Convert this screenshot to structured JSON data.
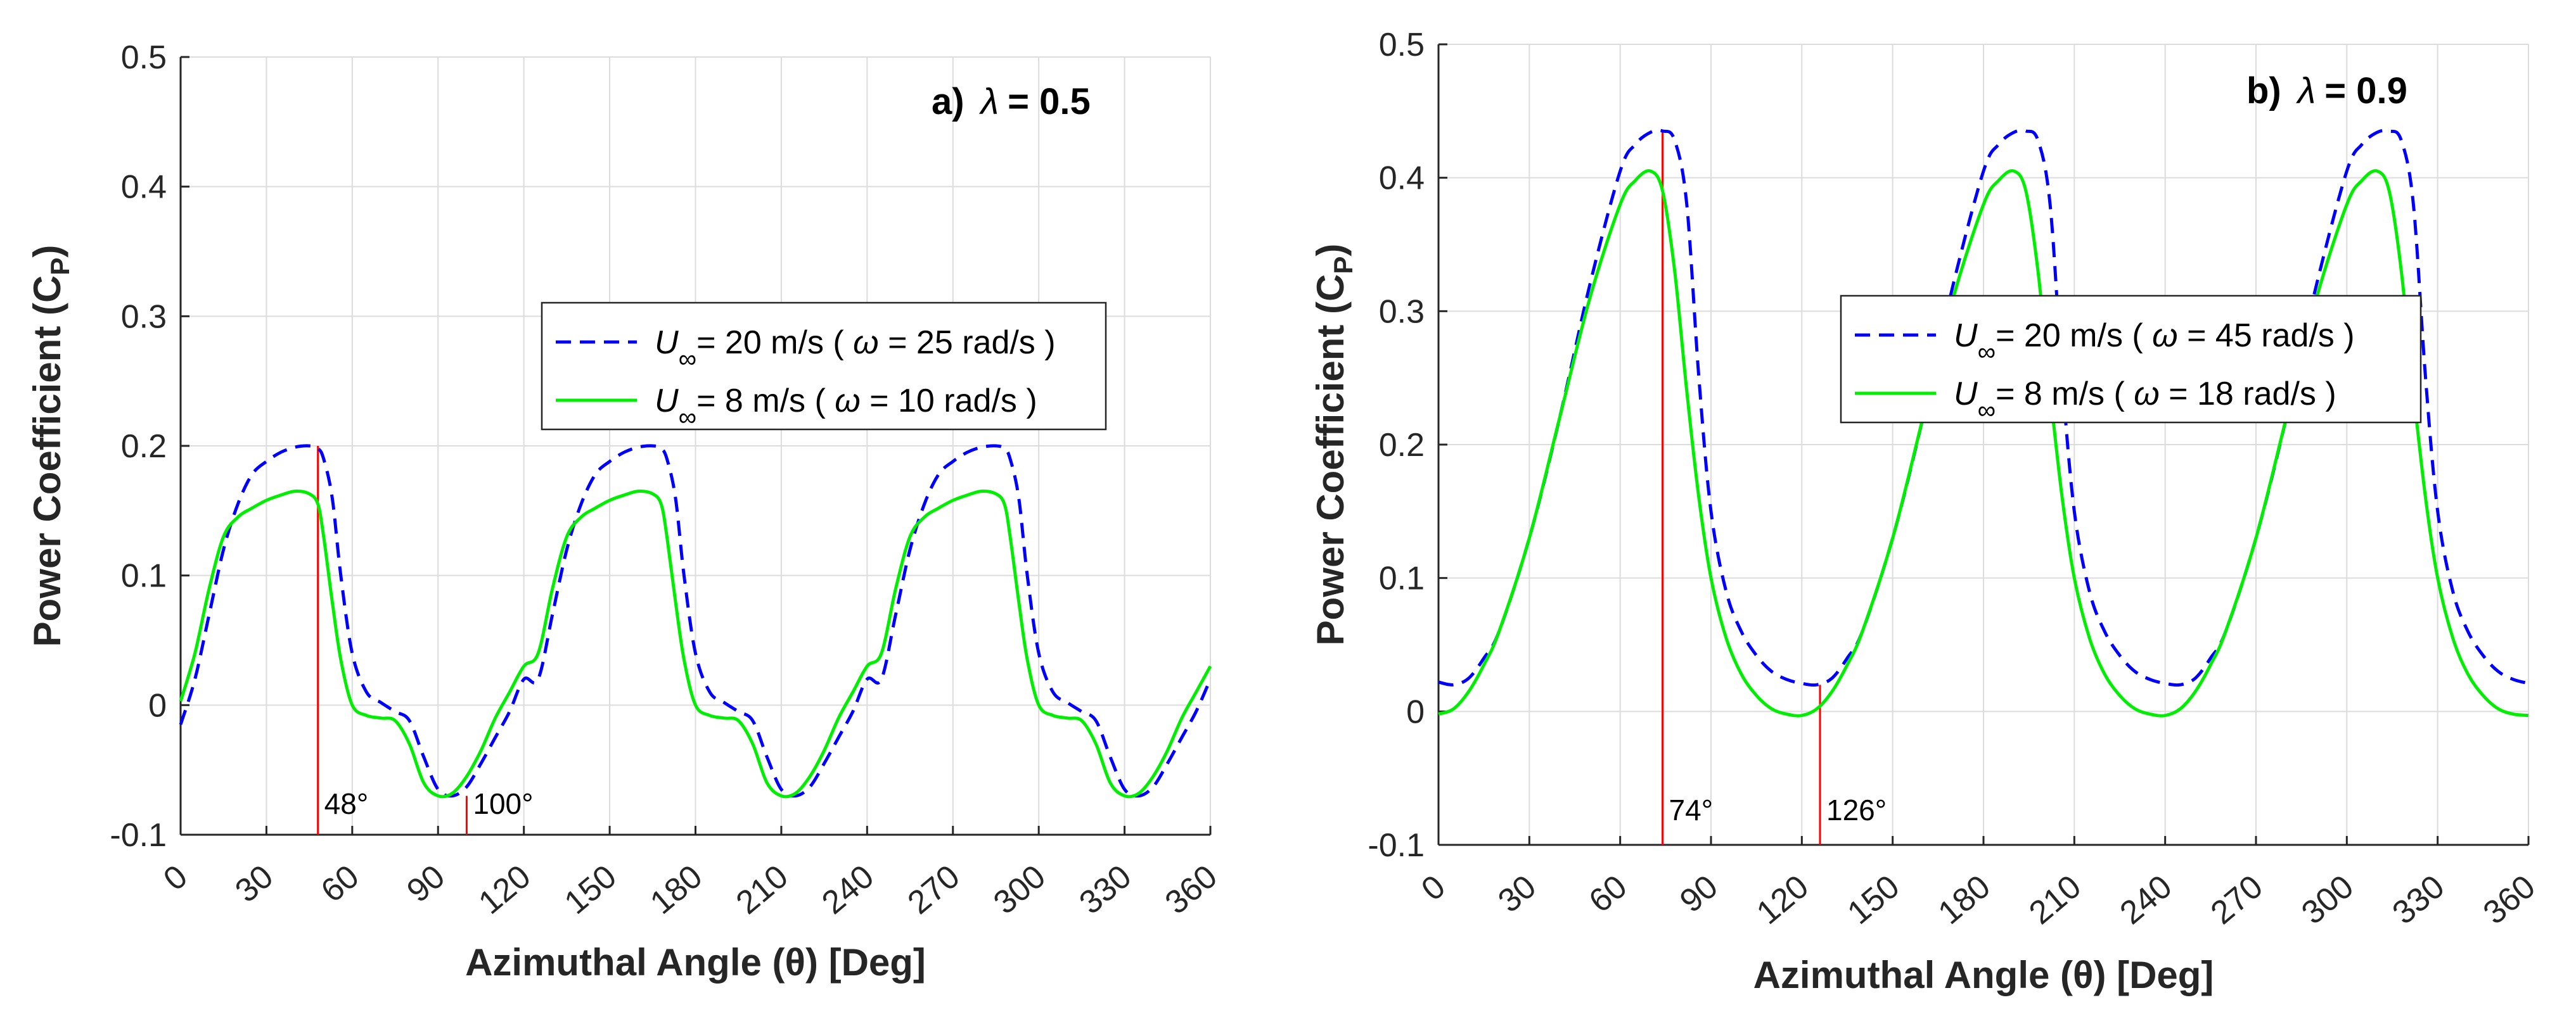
{
  "chart_data": [
    {
      "type": "line",
      "panel_tag": "a)",
      "title_symbol": "λ",
      "title_value": "= 0.5",
      "xlabel": "Azimuthal Angle (θ)  [Deg]",
      "ylabel": "Power Coefficient (C",
      "ylabel_sub": "P",
      "ylabel_close": ")",
      "xlim": [
        0,
        360
      ],
      "ylim": [
        -0.1,
        0.5
      ],
      "xticks": [
        0,
        30,
        60,
        90,
        120,
        150,
        180,
        210,
        240,
        270,
        300,
        330,
        360
      ],
      "yticks": [
        -0.1,
        0,
        0.1,
        0.2,
        0.3,
        0.4,
        0.5
      ],
      "xtick_labels": [
        "0",
        "30",
        "60",
        "90",
        "120",
        "150",
        "180",
        "210",
        "240",
        "270",
        "300",
        "330",
        "360"
      ],
      "ytick_labels": [
        "-0.1",
        "0",
        "0.1",
        "0.2",
        "0.3",
        "0.4",
        "0.5"
      ],
      "grid": true,
      "legend_position": "upper-right",
      "series": [
        {
          "name": "U∞ = 20 m/s  ( ω = 25 rad/s )",
          "legend_u": "U",
          "legend_sub": "∞",
          "legend_text": "= 20 m/s  ( ",
          "legend_omega": "ω",
          "legend_rest": " = 25 rad/s )",
          "color": "#0000ff",
          "dash": "dashed",
          "x": [
            0,
            5,
            10,
            15,
            20,
            25,
            30,
            35,
            40,
            45,
            48,
            50,
            53,
            56,
            60,
            65,
            70,
            75,
            80,
            85,
            90,
            95,
            100,
            105,
            110,
            115,
            120
          ],
          "y": [
            -0.015,
            0.02,
            0.07,
            0.12,
            0.155,
            0.178,
            0.188,
            0.195,
            0.199,
            0.2,
            0.198,
            0.19,
            0.16,
            0.1,
            0.04,
            0.01,
            0.002,
            -0.005,
            -0.012,
            -0.04,
            -0.065,
            -0.07,
            -0.063,
            -0.045,
            -0.025,
            -0.005,
            0.02
          ]
        },
        {
          "name": "U∞ = 8 m/s   ( ω = 10 rad/s )",
          "legend_u": "U",
          "legend_sub": "∞",
          "legend_text": "=  8 m/s   ( ",
          "legend_omega": "ω",
          "legend_rest": " = 10 rad/s )",
          "color": "#00ee00",
          "dash": "solid",
          "x": [
            0,
            5,
            10,
            15,
            20,
            25,
            30,
            35,
            40,
            45,
            48,
            50,
            53,
            56,
            60,
            65,
            70,
            75,
            80,
            85,
            90,
            95,
            100,
            105,
            110,
            115,
            120
          ],
          "y": [
            0.003,
            0.04,
            0.09,
            0.13,
            0.145,
            0.152,
            0.158,
            0.162,
            0.165,
            0.163,
            0.155,
            0.13,
            0.08,
            0.035,
            0.0,
            -0.008,
            -0.01,
            -0.012,
            -0.03,
            -0.06,
            -0.07,
            -0.068,
            -0.055,
            -0.035,
            -0.01,
            0.01,
            0.03
          ]
        }
      ],
      "markers": [
        {
          "x": 48,
          "label": "48°",
          "color": "#ff0000"
        },
        {
          "x": 100,
          "label": "100°",
          "color": "#ff0000"
        }
      ]
    },
    {
      "type": "line",
      "panel_tag": "b)",
      "title_symbol": "λ",
      "title_value": "= 0.9",
      "xlabel": "Azimuthal Angle (θ)  [Deg]",
      "ylabel": "Power Coefficient (C",
      "ylabel_sub": "P",
      "ylabel_close": ")",
      "xlim": [
        0,
        360
      ],
      "ylim": [
        -0.1,
        0.5
      ],
      "xticks": [
        0,
        30,
        60,
        90,
        120,
        150,
        180,
        210,
        240,
        270,
        300,
        330,
        360
      ],
      "yticks": [
        -0.1,
        0,
        0.1,
        0.2,
        0.3,
        0.4,
        0.5
      ],
      "xtick_labels": [
        "0",
        "30",
        "60",
        "90",
        "120",
        "150",
        "180",
        "210",
        "240",
        "270",
        "300",
        "330",
        "360"
      ],
      "ytick_labels": [
        "-0.1",
        "0",
        "0.1",
        "0.2",
        "0.3",
        "0.4",
        "0.5"
      ],
      "grid": true,
      "legend_position": "upper-right",
      "series": [
        {
          "name": "U∞ = 20 m/s  ( ω = 45 rad/s )",
          "legend_u": "U",
          "legend_sub": "∞",
          "legend_text": "= 20 m/s  ( ",
          "legend_omega": "ω",
          "legend_rest": " = 45 rad/s )",
          "color": "#0000ff",
          "dash": "dashed",
          "x": [
            0,
            5,
            10,
            15,
            20,
            30,
            40,
            50,
            60,
            65,
            70,
            74,
            78,
            82,
            86,
            90,
            95,
            100,
            105,
            110,
            115,
            120
          ],
          "y": [
            0.022,
            0.02,
            0.025,
            0.04,
            0.06,
            0.13,
            0.22,
            0.32,
            0.405,
            0.425,
            0.434,
            0.435,
            0.428,
            0.38,
            0.25,
            0.15,
            0.09,
            0.06,
            0.042,
            0.03,
            0.024,
            0.021
          ]
        },
        {
          "name": "U∞ = 8 m/s   ( ω = 18 rad/s )",
          "legend_u": "U",
          "legend_sub": "∞",
          "legend_text": "=  8 m/s   ( ",
          "legend_omega": "ω",
          "legend_rest": " = 18 rad/s )",
          "color": "#00ee00",
          "dash": "solid",
          "x": [
            0,
            5,
            10,
            15,
            20,
            30,
            40,
            50,
            60,
            65,
            70,
            74,
            78,
            82,
            86,
            90,
            95,
            100,
            105,
            110,
            115,
            120
          ],
          "y": [
            -0.002,
            0.002,
            0.015,
            0.035,
            0.06,
            0.13,
            0.22,
            0.31,
            0.38,
            0.398,
            0.405,
            0.39,
            0.33,
            0.24,
            0.16,
            0.1,
            0.055,
            0.028,
            0.012,
            0.002,
            -0.002,
            -0.003
          ]
        }
      ],
      "markers": [
        {
          "x": 74,
          "label": "74°",
          "color": "#ff0000"
        },
        {
          "x": 126,
          "label": "126°",
          "color": "#ff0000"
        }
      ]
    }
  ]
}
